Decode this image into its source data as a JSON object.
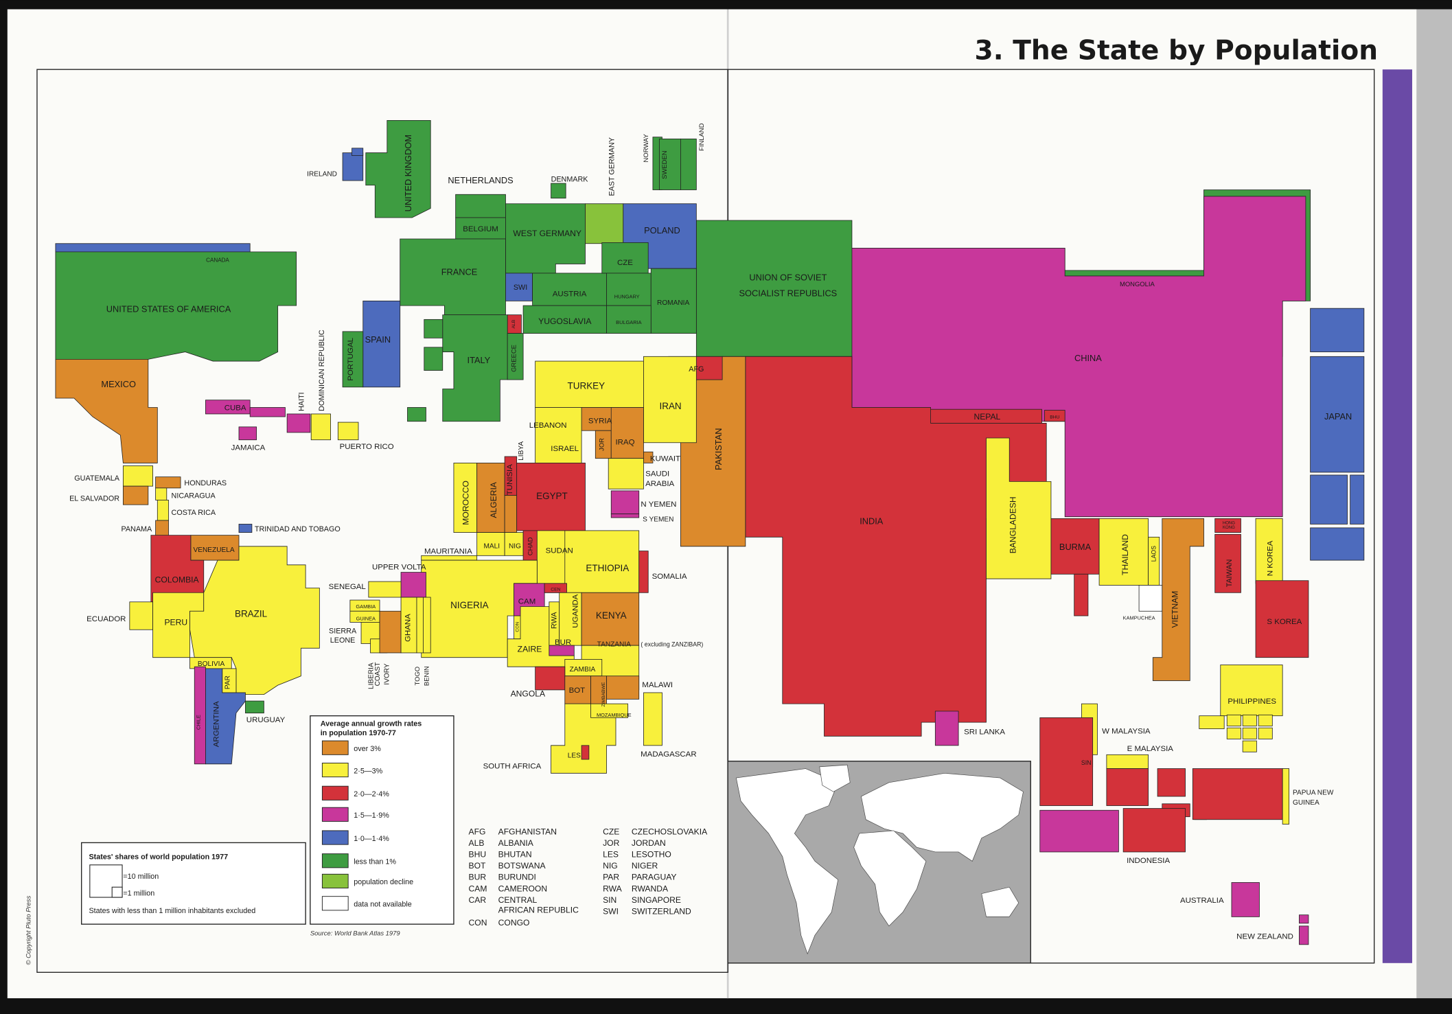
{
  "page_title": "3. The State by Population",
  "copyright": "© Copyright Pluto Press",
  "source": "Source: World Bank Atlas 1979",
  "colors": {
    "o": "#dc8a2c",
    "y": "#f8f03c",
    "r": "#d3323a",
    "m": "#c8379b",
    "b": "#4d6bbd",
    "g": "#3e9c41",
    "lg": "#88c23b",
    "w": "#ffffff",
    "purple_bar": "#6a4aa6",
    "inset_bg": "#a9a9a9"
  },
  "legend": {
    "title_line1": "Average annual growth rates",
    "title_line2": "in population 1970-77",
    "items": [
      {
        "class": "o",
        "label": "over 3%"
      },
      {
        "class": "y",
        "label": "2·5—3%"
      },
      {
        "class": "r",
        "label": "2·0—2·4%"
      },
      {
        "class": "m",
        "label": "1·5—1·9%"
      },
      {
        "class": "b",
        "label": "1·0—1·4%"
      },
      {
        "class": "g",
        "label": "less than 1%"
      },
      {
        "class": "lg",
        "label": "population decline"
      },
      {
        "class": "w",
        "label": "data not available"
      }
    ]
  },
  "shares_box": {
    "title": "States' shares of world population 1977",
    "ten_million": "=10 million",
    "one_million": "=1 million",
    "note": "States with less than 1 million inhabitants excluded"
  },
  "abbreviations": [
    {
      "abbr": "AFG",
      "name": "AFGHANISTAN"
    },
    {
      "abbr": "ALB",
      "name": "ALBANIA"
    },
    {
      "abbr": "BHU",
      "name": "BHUTAN"
    },
    {
      "abbr": "BOT",
      "name": "BOTSWANA"
    },
    {
      "abbr": "BUR",
      "name": "BURUNDI"
    },
    {
      "abbr": "CAM",
      "name": "CAMEROON"
    },
    {
      "abbr": "CAR",
      "name": "CENTRAL",
      "name2": "AFRICAN REPUBLIC"
    },
    {
      "abbr": "CON",
      "name": "CONGO"
    },
    {
      "abbr": "CZE",
      "name": "CZECHOSLOVAKIA"
    },
    {
      "abbr": "JOR",
      "name": "JORDAN"
    },
    {
      "abbr": "LES",
      "name": "LESOTHO"
    },
    {
      "abbr": "NIG",
      "name": "NIGER"
    },
    {
      "abbr": "PAR",
      "name": "PARAGUAY"
    },
    {
      "abbr": "RWA",
      "name": "RWANDA"
    },
    {
      "abbr": "SIN",
      "name": "SINGAPORE"
    },
    {
      "abbr": "SWI",
      "name": "SWITZERLAND"
    }
  ],
  "tanzania_note": "( excluding ZANZIBAR)",
  "countries": [
    {
      "id": "canada",
      "label": "CANADA",
      "growth": "b"
    },
    {
      "id": "usa",
      "label": "UNITED STATES OF AMERICA",
      "growth": "g"
    },
    {
      "id": "mexico",
      "label": "MEXICO",
      "growth": "o"
    },
    {
      "id": "guatemala",
      "label": "GUATEMALA",
      "growth": "y"
    },
    {
      "id": "elsalvador",
      "label": "EL SALVADOR",
      "growth": "o"
    },
    {
      "id": "honduras",
      "label": "HONDURAS",
      "growth": "o"
    },
    {
      "id": "nicaragua",
      "label": "NICARAGUA",
      "growth": "y"
    },
    {
      "id": "costarica",
      "label": "COSTA RICA",
      "growth": "y"
    },
    {
      "id": "panama",
      "label": "PANAMA",
      "growth": "o"
    },
    {
      "id": "cuba",
      "label": "CUBA",
      "growth": "m"
    },
    {
      "id": "haiti",
      "label": "HAITI",
      "growth": "m"
    },
    {
      "id": "domrep",
      "label": "DOMINICAN REPUBLIC",
      "growth": "y"
    },
    {
      "id": "jamaica",
      "label": "JAMAICA",
      "growth": "m"
    },
    {
      "id": "puertorico",
      "label": "PUERTO RICO",
      "growth": "y"
    },
    {
      "id": "trinidad",
      "label": "TRINIDAD AND TOBAGO",
      "growth": "b"
    },
    {
      "id": "venezuela",
      "label": "VENEZUELA",
      "growth": "o"
    },
    {
      "id": "colombia",
      "label": "COLOMBIA",
      "growth": "r"
    },
    {
      "id": "ecuador",
      "label": "ECUADOR",
      "growth": "y"
    },
    {
      "id": "peru",
      "label": "PERU",
      "growth": "y"
    },
    {
      "id": "brazil",
      "label": "BRAZIL",
      "growth": "y"
    },
    {
      "id": "bolivia",
      "label": "BOLIVIA",
      "growth": "y"
    },
    {
      "id": "paraguay",
      "label": "PAR",
      "growth": "y"
    },
    {
      "id": "chile",
      "label": "CHILE",
      "growth": "m"
    },
    {
      "id": "argentina",
      "label": "ARGENTINA",
      "growth": "b"
    },
    {
      "id": "uruguay",
      "label": "URUGUAY",
      "growth": "g"
    },
    {
      "id": "ireland",
      "label": "IRELAND",
      "growth": "b"
    },
    {
      "id": "uk",
      "label": "UNITED KINGDOM",
      "growth": "g"
    },
    {
      "id": "netherlands",
      "label": "NETHERLANDS",
      "growth": "g"
    },
    {
      "id": "denmark",
      "label": "DENMARK",
      "growth": "g"
    },
    {
      "id": "belgium",
      "label": "BELGIUM",
      "growth": "g"
    },
    {
      "id": "wgermany",
      "label": "WEST GERMANY",
      "growth": "g"
    },
    {
      "id": "egermany",
      "label": "EAST GERMANY",
      "growth": "lg"
    },
    {
      "id": "poland",
      "label": "POLAND",
      "growth": "b"
    },
    {
      "id": "norway",
      "label": "NORWAY",
      "growth": "g"
    },
    {
      "id": "sweden",
      "label": "SWEDEN",
      "growth": "g"
    },
    {
      "id": "finland",
      "label": "FINLAND",
      "growth": "g"
    },
    {
      "id": "france",
      "label": "FRANCE",
      "growth": "g"
    },
    {
      "id": "swi",
      "label": "SWI",
      "growth": "b"
    },
    {
      "id": "austria",
      "label": "AUSTRIA",
      "growth": "g"
    },
    {
      "id": "cze",
      "label": "CZE",
      "growth": "g"
    },
    {
      "id": "hungary",
      "label": "HUNGARY",
      "growth": "g"
    },
    {
      "id": "romania",
      "label": "ROMANIA",
      "growth": "g"
    },
    {
      "id": "yugoslavia",
      "label": "YUGOSLAVIA",
      "growth": "g"
    },
    {
      "id": "bulgaria",
      "label": "BULGARIA",
      "growth": "g"
    },
    {
      "id": "alb",
      "label": "ALB",
      "growth": "r"
    },
    {
      "id": "spain",
      "label": "SPAIN",
      "growth": "b"
    },
    {
      "id": "portugal",
      "label": "PORTUGAL",
      "growth": "g"
    },
    {
      "id": "italy",
      "label": "ITALY",
      "growth": "g"
    },
    {
      "id": "greece",
      "label": "GREECE",
      "growth": "g"
    },
    {
      "id": "ussr",
      "label": "UNION OF SOVIET",
      "label2": "SOCIALIST REPUBLICS",
      "growth": "g"
    },
    {
      "id": "china",
      "label": "CHINA",
      "growth": "m"
    },
    {
      "id": "mongolia",
      "label": "MONGOLIA",
      "growth": "g"
    },
    {
      "id": "nepal",
      "label": "NEPAL",
      "growth": "r"
    },
    {
      "id": "bhu",
      "label": "BHU",
      "growth": "r"
    },
    {
      "id": "india",
      "label": "INDIA",
      "growth": "r"
    },
    {
      "id": "pakistan",
      "label": "PAKISTAN",
      "growth": "o"
    },
    {
      "id": "afg",
      "label": "AFG",
      "growth": "r"
    },
    {
      "id": "turkey",
      "label": "TURKEY",
      "growth": "y"
    },
    {
      "id": "iran",
      "label": "IRAN",
      "growth": "y"
    },
    {
      "id": "syria",
      "label": "SYRIA",
      "growth": "o"
    },
    {
      "id": "lebanon",
      "label": "LEBANON",
      "growth": "y"
    },
    {
      "id": "israel",
      "label": "ISRAEL",
      "growth": "y"
    },
    {
      "id": "jordan",
      "label": "JOR",
      "growth": "o"
    },
    {
      "id": "iraq",
      "label": "IRAQ",
      "growth": "o"
    },
    {
      "id": "kuwait",
      "label": "KUWAIT",
      "growth": "o"
    },
    {
      "id": "saudi",
      "label": "SAUDI",
      "label2": "ARABIA",
      "growth": "y"
    },
    {
      "id": "nyemen",
      "label": "N YEMEN",
      "growth": "m"
    },
    {
      "id": "syemen",
      "label": "S YEMEN",
      "growth": "m"
    },
    {
      "id": "morocco",
      "label": "MOROCCO",
      "growth": "y"
    },
    {
      "id": "algeria",
      "label": "ALGERIA",
      "growth": "o"
    },
    {
      "id": "tunisia",
      "label": "TUNISIA",
      "growth": "r"
    },
    {
      "id": "libya",
      "label": "LIBYA",
      "growth": "o"
    },
    {
      "id": "egypt",
      "label": "EGYPT",
      "growth": "r"
    },
    {
      "id": "mali",
      "label": "MALI",
      "growth": "y"
    },
    {
      "id": "niger",
      "label": "NIG",
      "growth": "y"
    },
    {
      "id": "chad",
      "label": "CHAD",
      "growth": "r"
    },
    {
      "id": "sudan",
      "label": "SUDAN",
      "growth": "y"
    },
    {
      "id": "ethiopia",
      "label": "ETHIOPIA",
      "growth": "y"
    },
    {
      "id": "somalia",
      "label": "SOMALIA",
      "growth": "r"
    },
    {
      "id": "mauritania",
      "label": "MAURITANIA",
      "growth": "y"
    },
    {
      "id": "nigeria",
      "label": "NIGERIA",
      "growth": "y"
    },
    {
      "id": "uppervolta",
      "label": "UPPER VOLTA",
      "growth": "m"
    },
    {
      "id": "senegal",
      "label": "SENEGAL",
      "growth": "y"
    },
    {
      "id": "gambia",
      "label": "GAMBIA",
      "growth": "y"
    },
    {
      "id": "guinea",
      "label": "GUINEA",
      "growth": "y"
    },
    {
      "id": "sierraleone",
      "label": "SIERRA",
      "label2": "LEONE",
      "growth": "y"
    },
    {
      "id": "liberia",
      "label": "LIBERIA",
      "growth": "y"
    },
    {
      "id": "ivorycoast",
      "label": "IVORY",
      "label2": "COAST",
      "growth": "o"
    },
    {
      "id": "ghana",
      "label": "GHANA",
      "growth": "y"
    },
    {
      "id": "togo",
      "label": "TOGO",
      "growth": "y"
    },
    {
      "id": "benin",
      "label": "BENIN",
      "growth": "y"
    },
    {
      "id": "cam",
      "label": "CAM",
      "growth": "m"
    },
    {
      "id": "cen",
      "label": "CEN",
      "growth": "r"
    },
    {
      "id": "con",
      "label": "CON",
      "growth": "y"
    },
    {
      "id": "zaire",
      "label": "ZAIRE",
      "growth": "y"
    },
    {
      "id": "rwa",
      "label": "RWA",
      "growth": "y"
    },
    {
      "id": "uganda",
      "label": "UGANDA",
      "growth": "y"
    },
    {
      "id": "bur",
      "label": "BUR",
      "growth": "m"
    },
    {
      "id": "kenya",
      "label": "KENYA",
      "growth": "o"
    },
    {
      "id": "tanzania",
      "label": "TANZANIA",
      "growth": "y"
    },
    {
      "id": "zambia",
      "label": "ZAMBIA",
      "growth": "y"
    },
    {
      "id": "angola",
      "label": "ANGOLA",
      "growth": "r"
    },
    {
      "id": "bot",
      "label": "BOT",
      "growth": "o"
    },
    {
      "id": "zimbabwe",
      "label": "ZIMBABWE",
      "growth": "o"
    },
    {
      "id": "malawi",
      "label": "MALAWI",
      "growth": "o"
    },
    {
      "id": "mozambique",
      "label": "MOZAMBIQUE",
      "growth": "y"
    },
    {
      "id": "madagascar",
      "label": "MADAGASCAR",
      "growth": "y"
    },
    {
      "id": "southafrica",
      "label": "SOUTH AFRICA",
      "growth": "y"
    },
    {
      "id": "les",
      "label": "LES",
      "growth": "r"
    },
    {
      "id": "bangladesh",
      "label": "BANGLADESH",
      "growth": "y"
    },
    {
      "id": "burma",
      "label": "BURMA",
      "growth": "r"
    },
    {
      "id": "thailand",
      "label": "THAILAND",
      "growth": "y"
    },
    {
      "id": "laos",
      "label": "LAOS",
      "growth": "y"
    },
    {
      "id": "kampuchea",
      "label": "KAMPUCHEA",
      "growth": "w"
    },
    {
      "id": "vietnam",
      "label": "VIETNAM",
      "growth": "o"
    },
    {
      "id": "hongkong",
      "label": "HONG",
      "label2": "KONG",
      "growth": "r"
    },
    {
      "id": "taiwan",
      "label": "TAIWAN",
      "growth": "r"
    },
    {
      "id": "nkorea",
      "label": "N KOREA",
      "growth": "y"
    },
    {
      "id": "skorea",
      "label": "S KOREA",
      "growth": "r"
    },
    {
      "id": "japan",
      "label": "JAPAN",
      "growth": "b"
    },
    {
      "id": "srilanka",
      "label": "SRI LANKA",
      "growth": "m"
    },
    {
      "id": "philippines",
      "label": "PHILIPPINES",
      "growth": "y"
    },
    {
      "id": "wmalaysia",
      "label": "W MALAYSIA",
      "growth": "y"
    },
    {
      "id": "emalaysia",
      "label": "E MALAYSIA",
      "growth": "y"
    },
    {
      "id": "sin",
      "label": "SIN",
      "growth": "m"
    },
    {
      "id": "indonesia",
      "label": "INDONESIA",
      "growth": "r"
    },
    {
      "id": "png",
      "label": "PAPUA NEW",
      "label2": "GUINEA",
      "growth": "y"
    },
    {
      "id": "australia",
      "label": "AUSTRALIA",
      "growth": "m"
    },
    {
      "id": "newzealand",
      "label": "NEW ZEALAND",
      "growth": "m"
    }
  ]
}
